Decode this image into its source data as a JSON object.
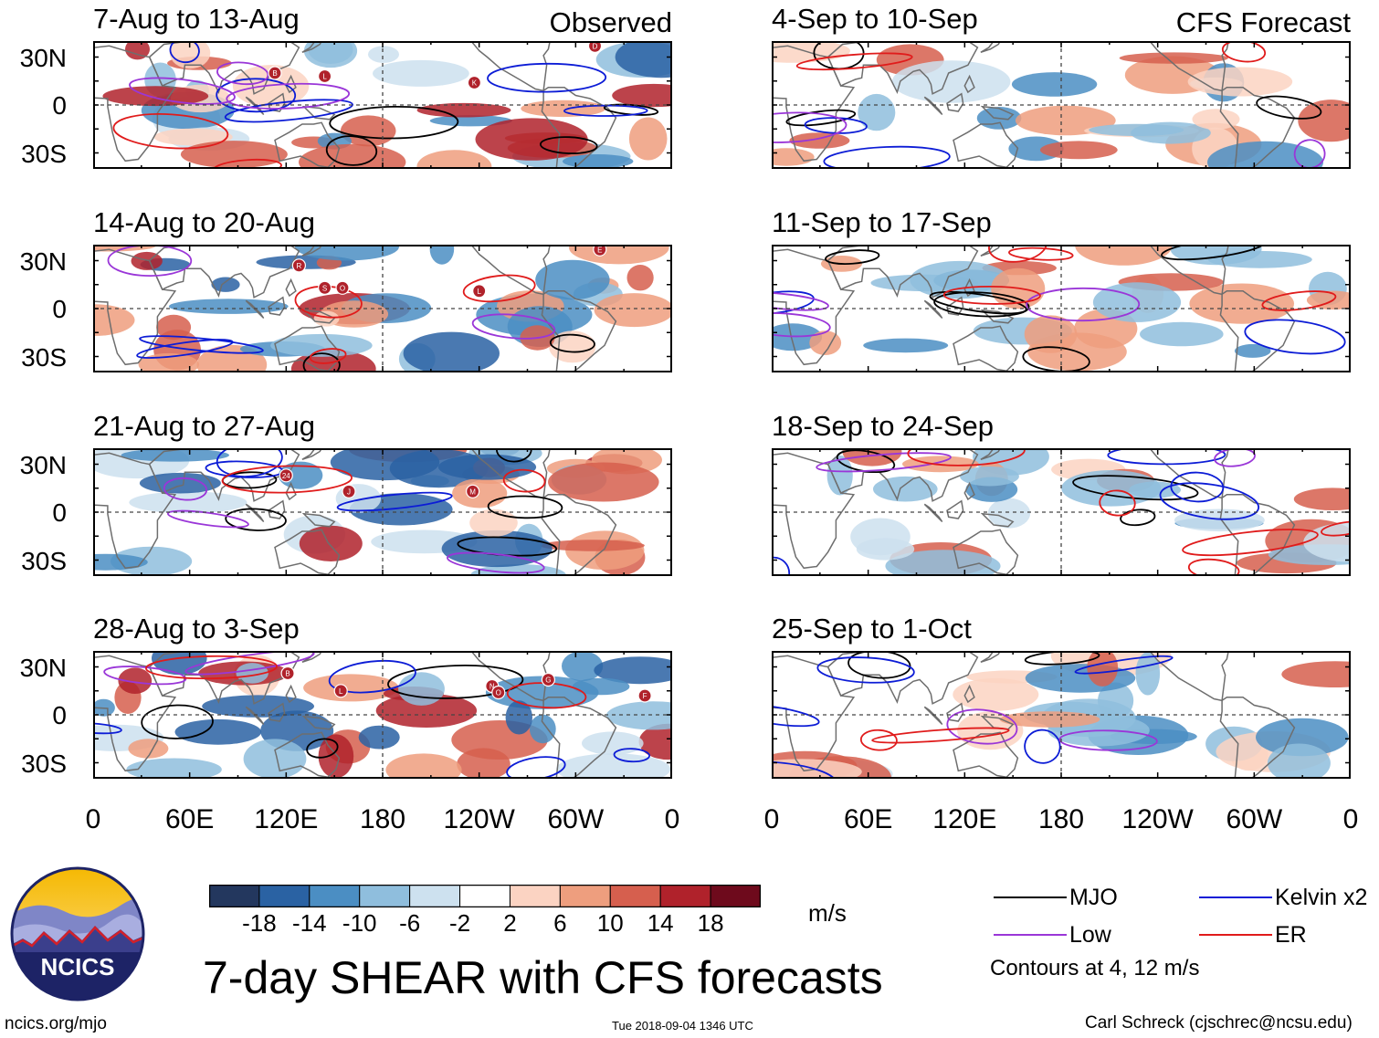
{
  "figure_title": "7-day SHEAR with CFS forecasts",
  "columns": {
    "left_label": "Observed",
    "right_label": "CFS Forecast"
  },
  "logo_text": "NCICS",
  "footer": {
    "left": "ncics.org/mjo",
    "center": "Tue 2018-09-04 1346 UTC",
    "right": "Carl Schreck (cjschrec@ncsu.edu)"
  },
  "colorbar": {
    "units": "m/s",
    "tick_labels": [
      "-18",
      "-14",
      "-10",
      "-6",
      "-2",
      "2",
      "6",
      "10",
      "14",
      "18"
    ],
    "colors": [
      "#23375e",
      "#2a62a3",
      "#4b8ec3",
      "#8fbedd",
      "#cde1ef",
      "#ffffff",
      "#fbd3c2",
      "#ee9e7e",
      "#d65f4e",
      "#b0222b",
      "#6e0a1c"
    ]
  },
  "legend": {
    "items": [
      {
        "label": "MJO",
        "color": "#000000"
      },
      {
        "label": "Kelvin x2",
        "color": "#0c1cd6"
      },
      {
        "label": "Low",
        "color": "#9a36d8"
      },
      {
        "label": "ER",
        "color": "#e01b1b"
      }
    ],
    "contours_note": "Contours at 4, 12 m/s"
  },
  "chart_data": [
    {
      "type": "heatmap",
      "column": "Observed",
      "title": "7-day SHEAR",
      "period": "7-Aug to 13-Aug",
      "x_ticks": [
        "0",
        "60E",
        "120E",
        "180",
        "120W",
        "60W",
        "0"
      ],
      "y_ticks": [
        "30N",
        "0",
        "30S"
      ],
      "xlim": [
        0,
        360
      ],
      "ylim": [
        -40,
        40
      ],
      "units": "m/s",
      "storm_markers": [
        {
          "label": "B",
          "lon": 113,
          "lat": 20
        },
        {
          "label": "L",
          "lon": 144,
          "lat": 18
        },
        {
          "label": "K",
          "lon": 237,
          "lat": 14
        },
        {
          "label": "D",
          "lon": 312,
          "lat": 37
        }
      ]
    },
    {
      "type": "heatmap",
      "column": "CFS Forecast",
      "title": "7-day SHEAR",
      "period": "4-Sep to 10-Sep",
      "x_ticks": [
        "0",
        "60E",
        "120E",
        "180",
        "120W",
        "60W",
        "0"
      ],
      "y_ticks": [
        "30N",
        "0",
        "30S"
      ],
      "xlim": [
        0,
        360
      ],
      "ylim": [
        -40,
        40
      ],
      "units": "m/s",
      "storm_markers": []
    },
    {
      "type": "heatmap",
      "column": "Observed",
      "title": "7-day SHEAR",
      "period": "14-Aug to 20-Aug",
      "x_ticks": [
        "0",
        "60E",
        "120E",
        "180",
        "120W",
        "60W",
        "0"
      ],
      "y_ticks": [
        "30N",
        "0",
        "30S"
      ],
      "xlim": [
        0,
        360
      ],
      "ylim": [
        -40,
        40
      ],
      "units": "m/s",
      "storm_markers": [
        {
          "label": "R",
          "lon": 128,
          "lat": 27
        },
        {
          "label": "S",
          "lon": 144,
          "lat": 13
        },
        {
          "label": "O",
          "lon": 155,
          "lat": 13
        },
        {
          "label": "L",
          "lon": 240,
          "lat": 11
        },
        {
          "label": "E",
          "lon": 315,
          "lat": 37
        }
      ]
    },
    {
      "type": "heatmap",
      "column": "CFS Forecast",
      "title": "7-day SHEAR",
      "period": "11-Sep to 17-Sep",
      "x_ticks": [
        "0",
        "60E",
        "120E",
        "180",
        "120W",
        "60W",
        "0"
      ],
      "y_ticks": [
        "30N",
        "0",
        "30S"
      ],
      "xlim": [
        0,
        360
      ],
      "ylim": [
        -40,
        40
      ],
      "units": "m/s",
      "storm_markers": []
    },
    {
      "type": "heatmap",
      "column": "Observed",
      "title": "7-day SHEAR",
      "period": "21-Aug to 27-Aug",
      "x_ticks": [
        "0",
        "60E",
        "120E",
        "180",
        "120W",
        "60W",
        "0"
      ],
      "y_ticks": [
        "30N",
        "0",
        "30S"
      ],
      "xlim": [
        0,
        360
      ],
      "ylim": [
        -40,
        40
      ],
      "units": "m/s",
      "storm_markers": [
        {
          "label": "24",
          "lon": 120,
          "lat": 23
        },
        {
          "label": "J",
          "lon": 159,
          "lat": 13
        },
        {
          "label": "M",
          "lon": 236,
          "lat": 13
        }
      ]
    },
    {
      "type": "heatmap",
      "column": "CFS Forecast",
      "title": "7-day SHEAR",
      "period": "18-Sep to 24-Sep",
      "x_ticks": [
        "0",
        "60E",
        "120E",
        "180",
        "120W",
        "60W",
        "0"
      ],
      "y_ticks": [
        "30N",
        "0",
        "30S"
      ],
      "xlim": [
        0,
        360
      ],
      "ylim": [
        -40,
        40
      ],
      "units": "m/s",
      "storm_markers": []
    },
    {
      "type": "heatmap",
      "column": "Observed",
      "title": "7-day SHEAR",
      "period": "28-Aug to 3-Sep",
      "x_ticks": [
        "0",
        "60E",
        "120E",
        "180",
        "120W",
        "60W",
        "0"
      ],
      "y_ticks": [
        "30N",
        "0",
        "30S"
      ],
      "xlim": [
        0,
        360
      ],
      "ylim": [
        -40,
        40
      ],
      "units": "m/s",
      "storm_markers": [
        {
          "label": "B",
          "lon": 121,
          "lat": 26
        },
        {
          "label": "L",
          "lon": 154,
          "lat": 15
        },
        {
          "label": "N",
          "lon": 248,
          "lat": 18
        },
        {
          "label": "O",
          "lon": 252,
          "lat": 14
        },
        {
          "label": "G",
          "lon": 283,
          "lat": 22
        },
        {
          "label": "F",
          "lon": 343,
          "lat": 12
        }
      ]
    },
    {
      "type": "heatmap",
      "column": "CFS Forecast",
      "title": "7-day SHEAR",
      "period": "25-Sep to 1-Oct",
      "x_ticks": [
        "0",
        "60E",
        "120E",
        "180",
        "120W",
        "60W",
        "0"
      ],
      "y_ticks": [
        "30N",
        "0",
        "30S"
      ],
      "xlim": [
        0,
        360
      ],
      "ylim": [
        -40,
        40
      ],
      "units": "m/s",
      "storm_markers": []
    }
  ]
}
